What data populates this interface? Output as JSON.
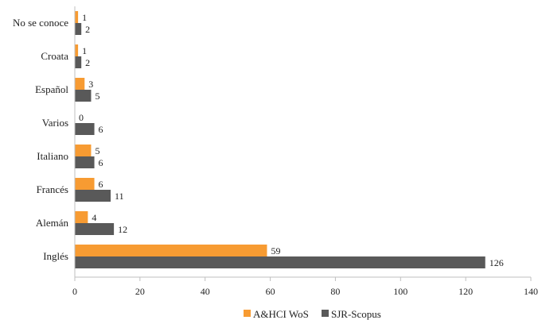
{
  "chart_data": {
    "type": "bar",
    "orientation": "horizontal",
    "categories": [
      "No se conoce",
      "Croata",
      "Español",
      "Varios",
      "Italiano",
      "Francés",
      "Alemán",
      "Inglés"
    ],
    "series": [
      {
        "name": "A&HCI WoS",
        "color": "#F79B32",
        "values": [
          1,
          1,
          3,
          0,
          5,
          6,
          4,
          59
        ]
      },
      {
        "name": "SJR-Scopus",
        "color": "#595959",
        "values": [
          2,
          2,
          5,
          6,
          6,
          11,
          12,
          126
        ]
      }
    ],
    "xlim": [
      0,
      140
    ],
    "xticks": [
      0,
      20,
      40,
      60,
      80,
      100,
      120,
      140
    ],
    "legend_position": "bottom",
    "grid": false,
    "data_labels": true
  }
}
